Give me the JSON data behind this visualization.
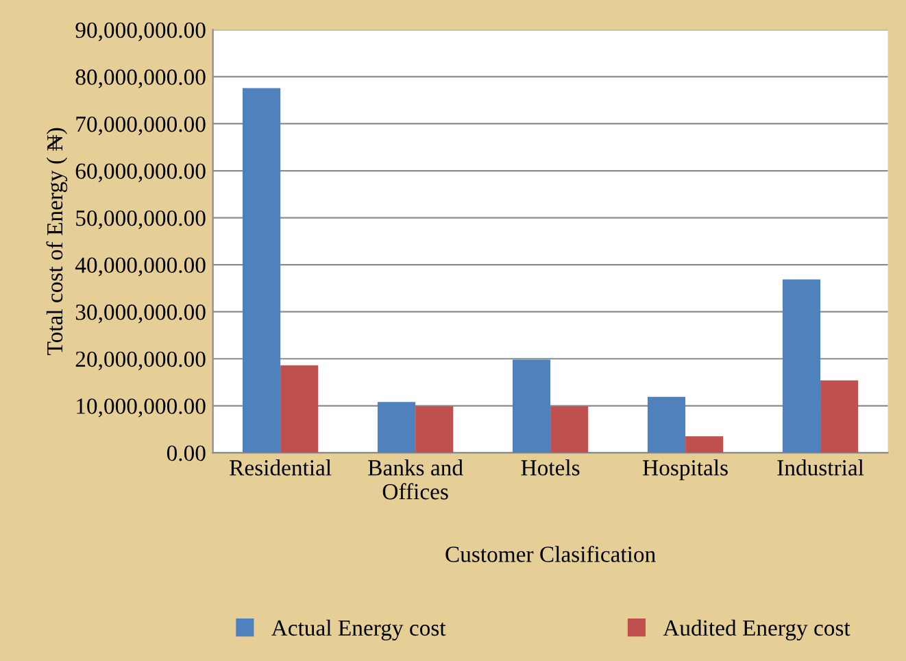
{
  "chart_data": {
    "type": "bar",
    "xlabel": "Customer Clasification",
    "ylabel": "Total cost of Energy ( ₦)",
    "categories": [
      "Residential",
      "Banks and\nOffices",
      "Hotels",
      "Hospitals",
      "Industrial"
    ],
    "series": [
      {
        "name": "Actual Energy cost",
        "color": "#4f81bd",
        "values": [
          77600000,
          10800000,
          19800000,
          11900000,
          36900000
        ]
      },
      {
        "name": "Audited Energy cost",
        "color": "#c0504d",
        "values": [
          18600000,
          9900000,
          9900000,
          3500000,
          15400000
        ]
      }
    ],
    "ylim": [
      0,
      90000000
    ],
    "yticks": [
      {
        "value": 0,
        "label": "0.00"
      },
      {
        "value": 10000000,
        "label": "10,000,000.00"
      },
      {
        "value": 20000000,
        "label": "20,000,000.00"
      },
      {
        "value": 30000000,
        "label": "30,000,000.00"
      },
      {
        "value": 40000000,
        "label": "40,000,000.00"
      },
      {
        "value": 50000000,
        "label": "50,000,000.00"
      },
      {
        "value": 60000000,
        "label": "60,000,000.00"
      },
      {
        "value": 70000000,
        "label": "70,000,000.00"
      },
      {
        "value": 80000000,
        "label": "80,000,000.00"
      },
      {
        "value": 90000000,
        "label": "90,000,000.00"
      }
    ],
    "grid": "y",
    "legend": "bottom"
  }
}
